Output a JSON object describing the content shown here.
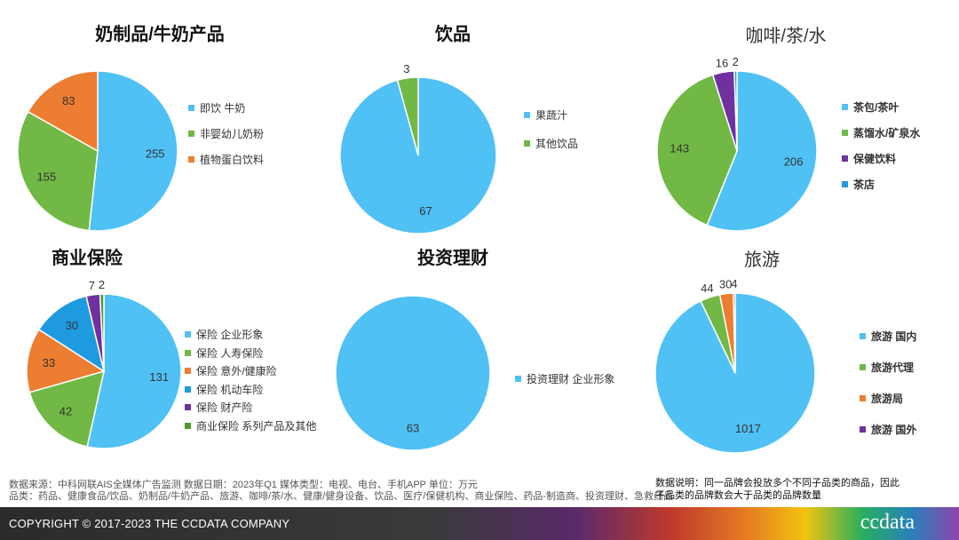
{
  "colors": {
    "sky": "#4FC1F5",
    "green": "#71B845",
    "orange": "#ED7D31",
    "blue": "#1E9BE0",
    "purple": "#7030A0",
    "darkgreen": "#4E9A2C"
  },
  "chart_data": [
    {
      "type": "pie",
      "title": "奶制品/牛奶产品",
      "labels": [
        "即饮  牛奶",
        "非婴幼儿奶粉",
        "植物蛋白饮料"
      ],
      "values": [
        255,
        155,
        83
      ],
      "colors": [
        "#4FC1F5",
        "#71B845",
        "#ED7D31"
      ],
      "legend": "right"
    },
    {
      "type": "pie",
      "title": "饮品",
      "labels": [
        "果蔬汁",
        "其他饮品"
      ],
      "values": [
        67,
        3
      ],
      "colors": [
        "#4FC1F5",
        "#71B845"
      ],
      "legend": "right"
    },
    {
      "type": "pie",
      "title": "咖啡/茶/水",
      "labels": [
        "茶包/茶叶",
        "蒸馏水/矿泉水",
        "保健饮料",
        "茶店"
      ],
      "values": [
        206,
        143,
        16,
        2
      ],
      "colors": [
        "#4FC1F5",
        "#71B845",
        "#7030A0",
        "#1E9BE0"
      ],
      "legend": "right"
    },
    {
      "type": "pie",
      "title": "商业保险",
      "labels": [
        "保险  企业形象",
        "保险  人寿保险",
        "保险  意外/健康险",
        "保险  机动车险",
        "保险  财产险",
        "商业保险  系列产品及其他"
      ],
      "values": [
        131,
        42,
        33,
        30,
        7,
        2
      ],
      "colors": [
        "#4FC1F5",
        "#71B845",
        "#ED7D31",
        "#1E9BE0",
        "#7030A0",
        "#4E9A2C"
      ],
      "legend": "right"
    },
    {
      "type": "pie",
      "title": "投资理财",
      "labels": [
        "投资理财  企业形象"
      ],
      "values": [
        63
      ],
      "colors": [
        "#4FC1F5"
      ],
      "legend": "right"
    },
    {
      "type": "pie",
      "title": "旅游",
      "labels": [
        "旅游  国内",
        "旅游代理",
        "旅游局",
        "旅游  国外"
      ],
      "values": [
        1017,
        44,
        30,
        4
      ],
      "colors": [
        "#4FC1F5",
        "#71B845",
        "#ED7D31",
        "#7030A0"
      ],
      "legend": "right"
    }
  ],
  "footer": {
    "source_line1": "数据来源：中科网联AIS全媒体广告监测  数据日期：2023年Q1 媒体类型：电视、电台、手机APP 单位：万元",
    "source_line2": "品类：药品、健康食品/饮品、奶制品/牛奶产品、旅游、咖啡/茶/水、健康/健身设备、饮品、医疗/保健机构、商业保险、药品-制造商、投资理财、急救药品",
    "note_line1": "数据说明：同一品牌会投放多个不同子品类的商品，因此",
    "note_line2": "子品类的品牌数会大于品类的品牌数量",
    "copyright": "COPYRIGHT © 2017-2023 THE CCDATA COMPANY",
    "logo": "ccdata"
  }
}
